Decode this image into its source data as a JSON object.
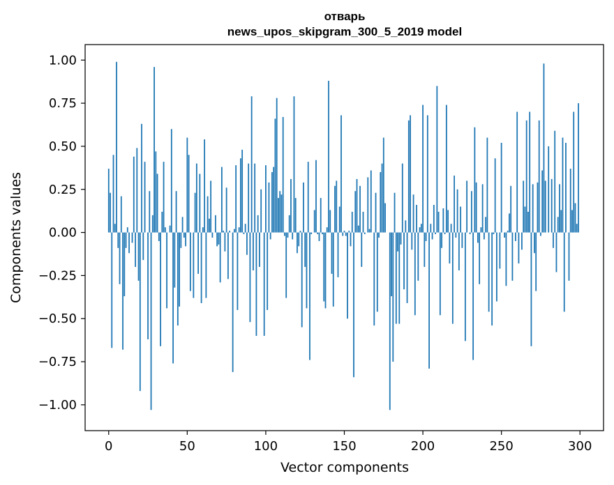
{
  "chart_data": {
    "type": "bar",
    "title": "отварь",
    "subtitle": "news_upos_skipgram_300_5_2019 model",
    "xlabel": "Vector components",
    "ylabel": "Components values",
    "xlim": [
      -15,
      315
    ],
    "ylim": [
      -1.15,
      1.09
    ],
    "xticks": [
      0,
      50,
      100,
      150,
      200,
      250,
      300
    ],
    "yticks": [
      1.0,
      0.75,
      0.5,
      0.25,
      0.0,
      -0.25,
      -0.5,
      -0.75,
      -1.0
    ],
    "ytick_labels": [
      "1.00",
      "0.75",
      "0.50",
      "0.25",
      "0.00",
      "−0.25",
      "−0.50",
      "−0.75",
      "−1.00"
    ],
    "bar_color": "#1f77b4",
    "grid": false,
    "values": [
      0.37,
      0.23,
      -0.67,
      0.45,
      0.05,
      0.99,
      -0.09,
      -0.3,
      0.21,
      -0.68,
      -0.37,
      -0.09,
      0.03,
      -0.12,
      0.0,
      -0.06,
      0.44,
      -0.2,
      0.49,
      -0.28,
      -0.92,
      0.63,
      -0.16,
      0.41,
      0.0,
      -0.62,
      0.24,
      -1.03,
      0.1,
      0.96,
      0.47,
      0.34,
      -0.05,
      -0.66,
      0.12,
      0.41,
      0.03,
      -0.44,
      0.0,
      0.04,
      0.6,
      -0.76,
      -0.32,
      0.24,
      -0.54,
      -0.43,
      -0.09,
      0.09,
      -0.03,
      -0.08,
      0.55,
      0.45,
      -0.34,
      0.0,
      -0.38,
      0.23,
      0.4,
      -0.24,
      0.34,
      -0.41,
      0.03,
      0.54,
      -0.38,
      0.21,
      0.08,
      0.3,
      -0.03,
      0.0,
      0.1,
      -0.08,
      -0.07,
      -0.29,
      0.38,
      0.01,
      -0.11,
      0.26,
      -0.27,
      0.01,
      0.0,
      -0.81,
      0.02,
      0.39,
      -0.45,
      0.03,
      0.43,
      0.48,
      -0.01,
      0.05,
      -0.13,
      0.4,
      -0.52,
      0.79,
      -0.22,
      0.4,
      -0.6,
      0.1,
      -0.2,
      0.25,
      0.0,
      -0.6,
      0.39,
      -0.45,
      0.29,
      -0.04,
      0.35,
      0.38,
      0.66,
      0.78,
      0.2,
      0.24,
      0.22,
      0.67,
      -0.02,
      -0.38,
      -0.03,
      0.1,
      0.31,
      -0.04,
      0.79,
      0.2,
      -0.12,
      -0.08,
      0.01,
      -0.55,
      0.29,
      -0.2,
      -0.44,
      0.41,
      -0.74,
      -0.01,
      0.0,
      0.13,
      0.42,
      -0.01,
      -0.05,
      0.2,
      -0.01,
      -0.4,
      -0.44,
      0.03,
      0.88,
      0.13,
      -0.24,
      -0.43,
      0.27,
      0.3,
      -0.26,
      0.15,
      0.68,
      -0.02,
      0.01,
      -0.02,
      -0.5,
      0.01,
      -0.08,
      0.12,
      -0.84,
      0.24,
      0.31,
      0.04,
      0.27,
      -0.2,
      0.12,
      -0.01,
      0.0,
      0.32,
      0.02,
      0.36,
      0.0,
      -0.54,
      0.23,
      -0.46,
      -0.03,
      0.35,
      0.4,
      0.55,
      0.17,
      0.0,
      0.0,
      -1.03,
      -0.37,
      -0.75,
      0.23,
      -0.53,
      -0.11,
      -0.53,
      -0.07,
      0.4,
      -0.33,
      0.07,
      -0.41,
      0.65,
      0.68,
      -0.1,
      0.22,
      -0.48,
      0.16,
      -0.28,
      0.03,
      0.05,
      0.74,
      -0.2,
      -0.05,
      0.68,
      -0.79,
      0.05,
      -0.04,
      0.16,
      -0.01,
      0.85,
      0.12,
      -0.48,
      -0.09,
      0.14,
      -0.01,
      0.74,
      0.13,
      -0.18,
      0.05,
      -0.53,
      0.33,
      -0.03,
      0.25,
      -0.22,
      0.15,
      -0.09,
      0.0,
      -0.63,
      0.3,
      0.0,
      -0.01,
      0.24,
      -0.74,
      0.61,
      0.29,
      -0.06,
      -0.3,
      0.03,
      0.28,
      -0.04,
      0.09,
      0.55,
      -0.46,
      0.0,
      -0.54,
      -0.01,
      0.43,
      -0.4,
      0.0,
      -0.21,
      0.52,
      0.0,
      -0.03,
      -0.31,
      0.01,
      0.11,
      0.27,
      -0.28,
      0.0,
      -0.05,
      0.7,
      -0.18,
      0.0,
      -0.1,
      0.3,
      0.15,
      0.65,
      0.12,
      0.7,
      -0.66,
      0.28,
      -0.12,
      -0.34,
      0.29,
      0.65,
      -0.02,
      0.36,
      0.98,
      0.3,
      0.0,
      0.5,
      0.0,
      0.31,
      -0.09,
      0.59,
      -0.23,
      0.09,
      0.28,
      0.13,
      0.55,
      -0.46,
      0.52,
      0.0,
      -0.28,
      0.37,
      0.13,
      0.7,
      0.17,
      0.05,
      0.75
    ]
  }
}
